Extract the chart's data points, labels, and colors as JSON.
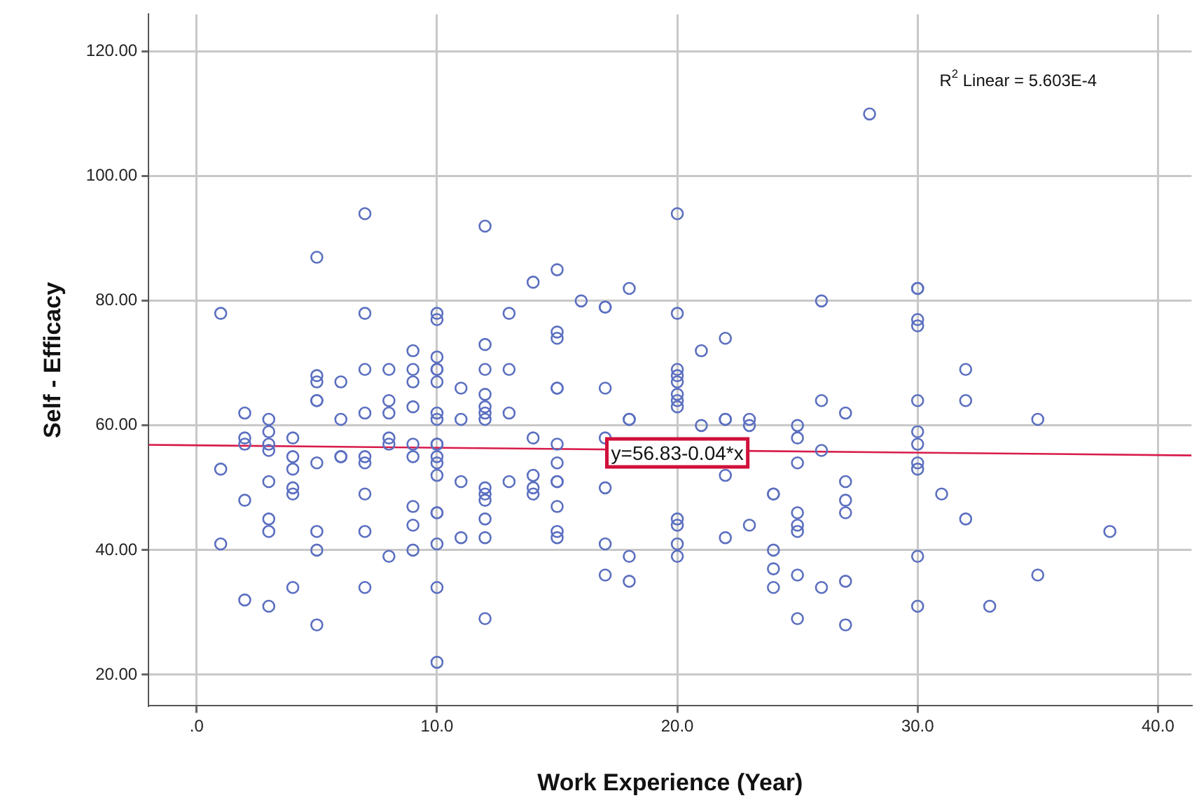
{
  "chart_data": {
    "type": "scatter",
    "xlabel": "Work Experience (Year)",
    "ylabel": "Self - Efficacy",
    "xlim": [
      -2,
      41.4
    ],
    "ylim": [
      15,
      126
    ],
    "xticks": [
      {
        "value": 0,
        "label": ".0"
      },
      {
        "value": 10,
        "label": "10.0"
      },
      {
        "value": 20,
        "label": "20.0"
      },
      {
        "value": 30,
        "label": "30.0"
      },
      {
        "value": 40,
        "label": "40.0"
      }
    ],
    "yticks": [
      {
        "value": 20,
        "label": "20.00"
      },
      {
        "value": 40,
        "label": "40.00"
      },
      {
        "value": 60,
        "label": "60.00"
      },
      {
        "value": 80,
        "label": "80.00"
      },
      {
        "value": 100,
        "label": "100.00"
      },
      {
        "value": 120,
        "label": "120.00"
      }
    ],
    "grid": true,
    "legend": false,
    "series": [
      {
        "type": "scatter",
        "marker": "circle",
        "color": "#5b6fc0",
        "x": [
          1,
          1,
          1,
          2,
          2,
          2,
          2,
          2,
          3,
          3,
          3,
          3,
          3,
          3,
          3,
          3,
          4,
          4,
          4,
          4,
          4,
          4,
          5,
          5,
          5,
          5,
          5,
          5,
          5,
          5,
          5,
          6,
          6,
          6,
          6,
          7,
          7,
          7,
          7,
          7,
          7,
          7,
          7,
          7,
          8,
          8,
          8,
          8,
          8,
          8,
          9,
          9,
          9,
          9,
          9,
          9,
          9,
          9,
          9,
          10,
          10,
          10,
          10,
          10,
          10,
          10,
          10,
          10,
          10,
          10,
          10,
          10,
          10,
          10,
          10,
          10,
          10,
          11,
          11,
          11,
          11,
          12,
          12,
          12,
          12,
          12,
          12,
          12,
          12,
          12,
          12,
          12,
          12,
          12,
          13,
          13,
          13,
          13,
          14,
          14,
          14,
          14,
          14,
          15,
          15,
          15,
          15,
          15,
          15,
          15,
          15,
          15,
          15,
          15,
          15,
          16,
          17,
          17,
          17,
          17,
          17,
          17,
          17,
          18,
          18,
          18,
          18,
          18,
          20,
          20,
          20,
          20,
          20,
          20,
          20,
          20,
          20,
          20,
          20,
          20,
          21,
          21,
          22,
          22,
          22,
          22,
          22,
          23,
          23,
          23,
          24,
          24,
          24,
          24,
          24,
          25,
          25,
          25,
          25,
          25,
          25,
          25,
          25,
          26,
          26,
          26,
          26,
          27,
          27,
          27,
          27,
          27,
          27,
          28,
          30,
          30,
          30,
          30,
          30,
          30,
          30,
          30,
          30,
          30,
          30,
          31,
          32,
          32,
          32,
          33,
          35,
          35,
          38
        ],
        "values": [
          78,
          53,
          41,
          62,
          58,
          57,
          48,
          32,
          61,
          59,
          57,
          56,
          51,
          45,
          43,
          31,
          58,
          55,
          53,
          50,
          49,
          34,
          87,
          68,
          67,
          64,
          64,
          54,
          43,
          40,
          28,
          67,
          61,
          55,
          55,
          94,
          78,
          69,
          62,
          55,
          54,
          49,
          43,
          34,
          69,
          64,
          62,
          58,
          57,
          39,
          72,
          69,
          67,
          63,
          57,
          55,
          47,
          44,
          40,
          78,
          77,
          71,
          69,
          69,
          67,
          62,
          61,
          57,
          57,
          55,
          54,
          52,
          46,
          46,
          41,
          34,
          22,
          66,
          61,
          51,
          42,
          92,
          73,
          69,
          65,
          63,
          62,
          61,
          50,
          49,
          48,
          45,
          42,
          29,
          78,
          69,
          62,
          51,
          83,
          58,
          52,
          50,
          49,
          85,
          75,
          74,
          66,
          66,
          57,
          54,
          51,
          51,
          47,
          43,
          42,
          80,
          79,
          79,
          66,
          58,
          50,
          41,
          36,
          82,
          61,
          61,
          39,
          35,
          94,
          78,
          69,
          68,
          67,
          65,
          64,
          63,
          45,
          44,
          41,
          39,
          72,
          60,
          74,
          61,
          61,
          52,
          42,
          61,
          60,
          44,
          49,
          49,
          40,
          37,
          34,
          60,
          58,
          54,
          46,
          44,
          43,
          36,
          29,
          80,
          64,
          56,
          34,
          62,
          51,
          48,
          46,
          35,
          28,
          110,
          82,
          82,
          77,
          76,
          64,
          59,
          57,
          54,
          53,
          39,
          31,
          49,
          69,
          64,
          45,
          31,
          61,
          36,
          43
        ]
      },
      {
        "type": "line",
        "marker": "none",
        "color": "#d81b4a",
        "x": [
          -2,
          41.4
        ],
        "values": [
          56.9,
          55.2
        ]
      }
    ],
    "annotations": [
      "R$^{2}$ Linear = 5.603E-4",
      {
        "text": "y=56.83-0.04*x",
        "x": 20,
        "y": 55.6
      }
    ]
  }
}
